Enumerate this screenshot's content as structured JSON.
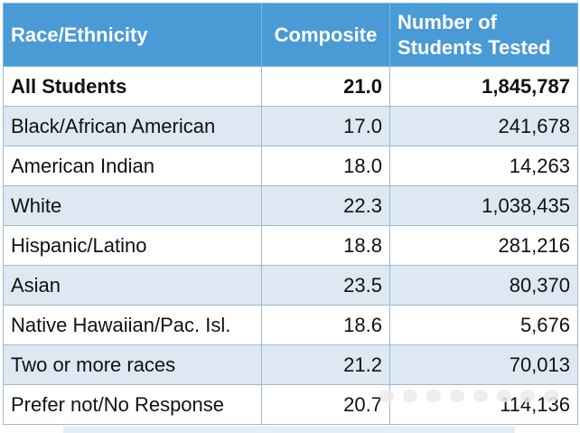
{
  "chart_data": {
    "type": "table",
    "columns": [
      "Race/Ethnicity",
      "Composite",
      "Number of Students Tested"
    ],
    "rows": [
      {
        "group": "All Students",
        "composite": "21.0",
        "tested": "1,845,787",
        "bold": true
      },
      {
        "group": "Black/African American",
        "composite": "17.0",
        "tested": "241,678"
      },
      {
        "group": "American Indian",
        "composite": "18.0",
        "tested": "14,263"
      },
      {
        "group": "White",
        "composite": "22.3",
        "tested": "1,038,435"
      },
      {
        "group": "Hispanic/Latino",
        "composite": "18.8",
        "tested": "281,216"
      },
      {
        "group": "Asian",
        "composite": "23.5",
        "tested": "80,370"
      },
      {
        "group": "Native Hawaiian/Pac. Isl.",
        "composite": "18.6",
        "tested": "5,676"
      },
      {
        "group": "Two or more races",
        "composite": "21.2",
        "tested": "70,013"
      },
      {
        "group": "Prefer not/No Response",
        "composite": "20.7",
        "tested": "114,136"
      }
    ]
  },
  "colors": {
    "header_bg": "#4a9ad6",
    "header_text": "#ffffff",
    "stripe": "#dde8f3",
    "border": "#9fb9d0"
  }
}
